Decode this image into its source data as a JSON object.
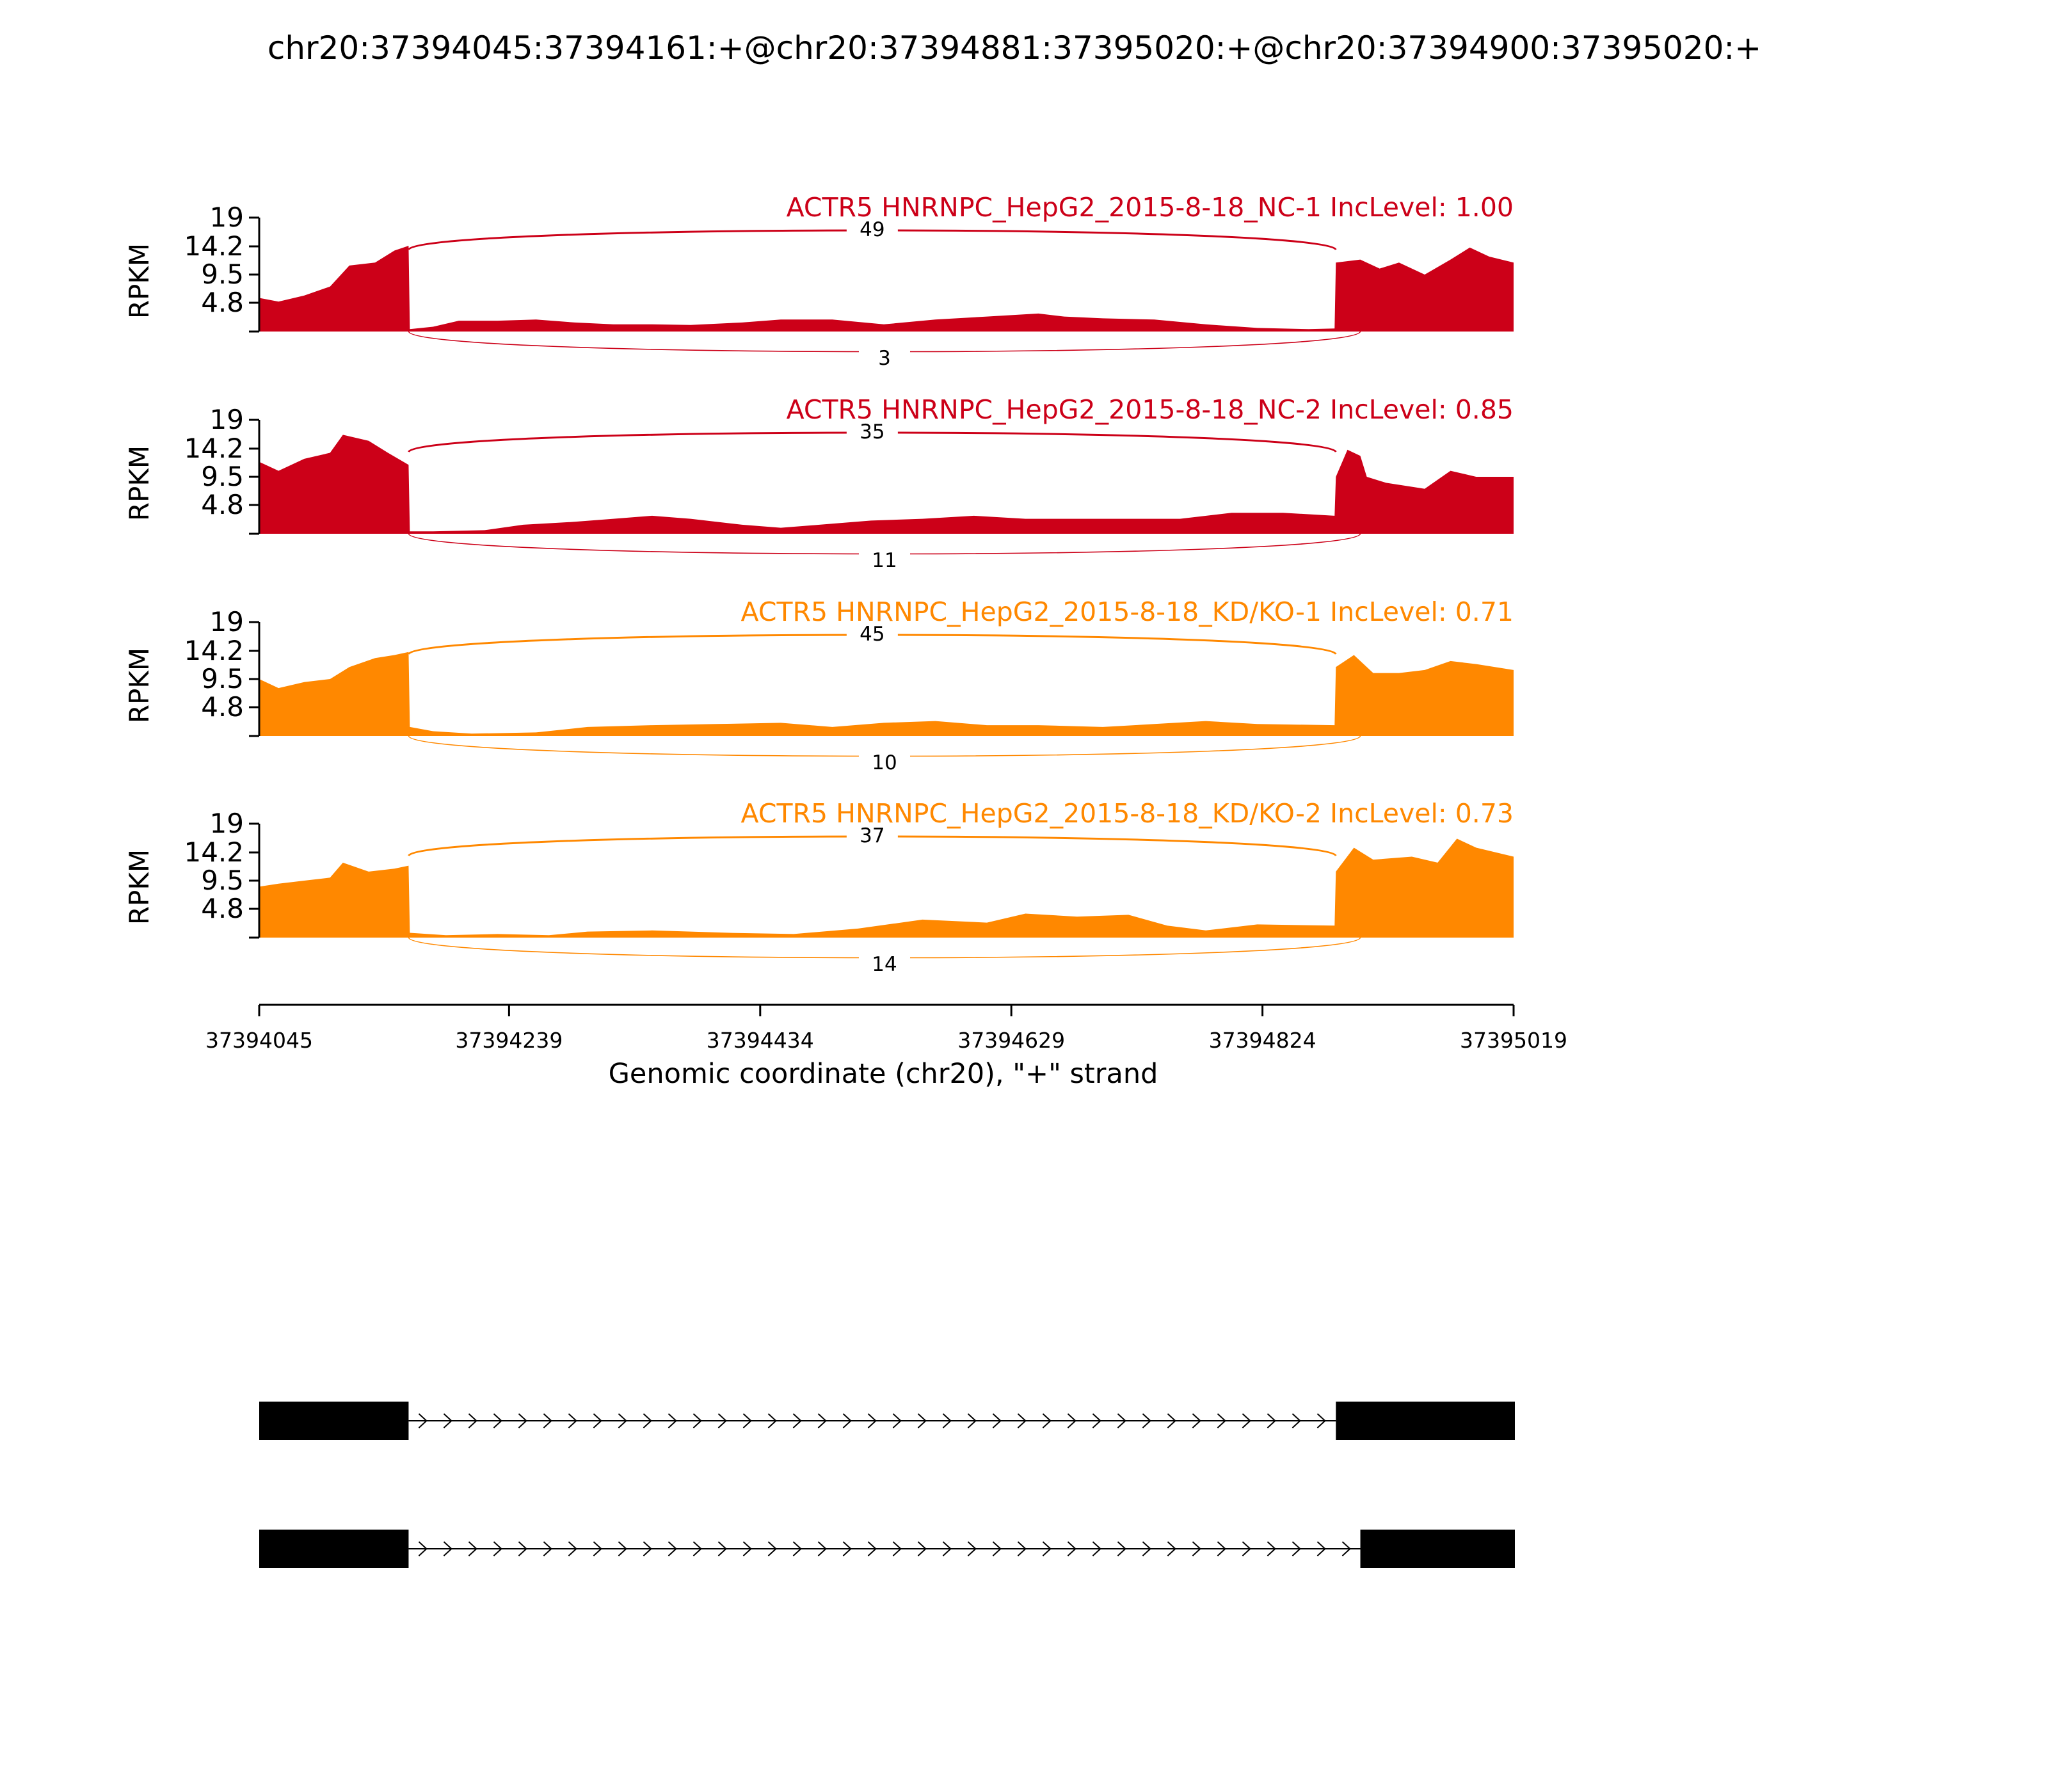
{
  "title": "chr20:37394045:37394161:+@chr20:37394881:37395020:+@chr20:37394900:37395020:+",
  "x_axis": {
    "label": "Genomic coordinate (chr20), \"+\" strand",
    "ticks": [
      "37394045",
      "37394239",
      "37394434",
      "37394629",
      "37394824",
      "37395019"
    ]
  },
  "colors": {
    "NC": "#cc0018",
    "KD": "#ff8800"
  },
  "chart_data": {
    "type": "area",
    "title": "chr20:37394045:37394161:+@chr20:37394881:37395020:+@chr20:37394900:37395020:+",
    "xlabel": "Genomic coordinate (chr20), \"+\" strand",
    "ylabel": "RPKM",
    "xlim": [
      37394045,
      37395019
    ],
    "ylim": [
      0,
      19
    ],
    "yticks": [
      "19",
      "14.2",
      "9.5",
      "4.8"
    ],
    "legend": "none",
    "exon_regions": [
      [
        37394045,
        37394161
      ],
      [
        37394881,
        37395020
      ],
      [
        37394900,
        37395020
      ]
    ],
    "tracks": [
      {
        "label": "ACTR5 HNRNPC_HepG2_2015-8-18_NC-1 IncLevel: 1.00",
        "group": "NC",
        "color": "#cc0018",
        "ylabel": "RPKM",
        "coverage": [
          [
            37394045,
            5.6
          ],
          [
            37394060,
            5.0
          ],
          [
            37394080,
            6.0
          ],
          [
            37394100,
            7.5
          ],
          [
            37394115,
            11.0
          ],
          [
            37394135,
            11.5
          ],
          [
            37394150,
            13.5
          ],
          [
            37394161,
            14.3
          ],
          [
            37394162,
            0.4
          ],
          [
            37394180,
            0.8
          ],
          [
            37394200,
            1.8
          ],
          [
            37394230,
            1.8
          ],
          [
            37394260,
            2.0
          ],
          [
            37394290,
            1.5
          ],
          [
            37394320,
            1.2
          ],
          [
            37394350,
            1.2
          ],
          [
            37394380,
            1.1
          ],
          [
            37394420,
            1.5
          ],
          [
            37394450,
            2.0
          ],
          [
            37394490,
            2.0
          ],
          [
            37394530,
            1.2
          ],
          [
            37394570,
            2.0
          ],
          [
            37394610,
            2.5
          ],
          [
            37394650,
            3.0
          ],
          [
            37394670,
            2.5
          ],
          [
            37394700,
            2.2
          ],
          [
            37394740,
            2.0
          ],
          [
            37394780,
            1.2
          ],
          [
            37394820,
            0.6
          ],
          [
            37394860,
            0.4
          ],
          [
            37394880,
            0.5
          ],
          [
            37394881,
            11.5
          ],
          [
            37394900,
            12.0
          ],
          [
            37394915,
            10.5
          ],
          [
            37394930,
            11.5
          ],
          [
            37394950,
            9.5
          ],
          [
            37394970,
            12.0
          ],
          [
            37394985,
            14.0
          ],
          [
            37395000,
            12.5
          ],
          [
            37395019,
            11.5
          ]
        ],
        "junctions": [
          {
            "count": "49",
            "from": 37394161,
            "to": 37394881,
            "side": "top"
          },
          {
            "count": "3",
            "from": 37394161,
            "to": 37394900,
            "side": "bottom"
          }
        ]
      },
      {
        "label": "ACTR5 HNRNPC_HepG2_2015-8-18_NC-2 IncLevel: 0.85",
        "group": "NC",
        "color": "#cc0018",
        "ylabel": "RPKM",
        "coverage": [
          [
            37394045,
            12.0
          ],
          [
            37394060,
            10.5
          ],
          [
            37394080,
            12.5
          ],
          [
            37394100,
            13.5
          ],
          [
            37394110,
            16.5
          ],
          [
            37394130,
            15.5
          ],
          [
            37394145,
            13.5
          ],
          [
            37394161,
            11.5
          ],
          [
            37394162,
            0.4
          ],
          [
            37394180,
            0.4
          ],
          [
            37394220,
            0.6
          ],
          [
            37394250,
            1.5
          ],
          [
            37394290,
            2.0
          ],
          [
            37394320,
            2.5
          ],
          [
            37394350,
            3.0
          ],
          [
            37394380,
            2.5
          ],
          [
            37394420,
            1.5
          ],
          [
            37394450,
            1.0
          ],
          [
            37394480,
            1.5
          ],
          [
            37394520,
            2.2
          ],
          [
            37394560,
            2.5
          ],
          [
            37394600,
            3.0
          ],
          [
            37394640,
            2.5
          ],
          [
            37394680,
            2.5
          ],
          [
            37394720,
            2.5
          ],
          [
            37394760,
            2.5
          ],
          [
            37394800,
            3.5
          ],
          [
            37394840,
            3.5
          ],
          [
            37394880,
            3.0
          ],
          [
            37394881,
            9.5
          ],
          [
            37394890,
            14.0
          ],
          [
            37394900,
            13.0
          ],
          [
            37394905,
            9.5
          ],
          [
            37394920,
            8.5
          ],
          [
            37394950,
            7.5
          ],
          [
            37394970,
            10.5
          ],
          [
            37394990,
            9.5
          ],
          [
            37395019,
            9.5
          ]
        ],
        "junctions": [
          {
            "count": "35",
            "from": 37394161,
            "to": 37394881,
            "side": "top"
          },
          {
            "count": "11",
            "from": 37394161,
            "to": 37394900,
            "side": "bottom"
          }
        ]
      },
      {
        "label": "ACTR5 HNRNPC_HepG2_2015-8-18_KD/KO-1 IncLevel: 0.71",
        "group": "KD",
        "color": "#ff8800",
        "ylabel": "RPKM",
        "coverage": [
          [
            37394045,
            9.5
          ],
          [
            37394060,
            8.0
          ],
          [
            37394080,
            9.0
          ],
          [
            37394100,
            9.5
          ],
          [
            37394115,
            11.5
          ],
          [
            37394135,
            13.0
          ],
          [
            37394150,
            13.5
          ],
          [
            37394161,
            14.0
          ],
          [
            37394162,
            1.5
          ],
          [
            37394180,
            0.8
          ],
          [
            37394210,
            0.4
          ],
          [
            37394260,
            0.6
          ],
          [
            37394300,
            1.5
          ],
          [
            37394350,
            1.8
          ],
          [
            37394400,
            2.0
          ],
          [
            37394450,
            2.2
          ],
          [
            37394490,
            1.5
          ],
          [
            37394530,
            2.2
          ],
          [
            37394570,
            2.5
          ],
          [
            37394610,
            1.8
          ],
          [
            37394650,
            1.8
          ],
          [
            37394700,
            1.5
          ],
          [
            37394740,
            2.0
          ],
          [
            37394780,
            2.5
          ],
          [
            37394820,
            2.0
          ],
          [
            37394880,
            1.8
          ],
          [
            37394881,
            11.5
          ],
          [
            37394895,
            13.5
          ],
          [
            37394910,
            10.5
          ],
          [
            37394930,
            10.5
          ],
          [
            37394950,
            11.0
          ],
          [
            37394970,
            12.5
          ],
          [
            37394990,
            12.0
          ],
          [
            37395019,
            11.0
          ]
        ],
        "junctions": [
          {
            "count": "45",
            "from": 37394161,
            "to": 37394881,
            "side": "top"
          },
          {
            "count": "10",
            "from": 37394161,
            "to": 37394900,
            "side": "bottom"
          }
        ]
      },
      {
        "label": "ACTR5 HNRNPC_HepG2_2015-8-18_KD/KO-2 IncLevel: 0.73",
        "group": "KD",
        "color": "#ff8800",
        "ylabel": "RPKM",
        "coverage": [
          [
            37394045,
            8.5
          ],
          [
            37394060,
            9.0
          ],
          [
            37394080,
            9.5
          ],
          [
            37394100,
            10.0
          ],
          [
            37394110,
            12.5
          ],
          [
            37394130,
            11.0
          ],
          [
            37394150,
            11.5
          ],
          [
            37394161,
            12.0
          ],
          [
            37394162,
            0.8
          ],
          [
            37394190,
            0.4
          ],
          [
            37394230,
            0.6
          ],
          [
            37394270,
            0.4
          ],
          [
            37394300,
            1.0
          ],
          [
            37394350,
            1.2
          ],
          [
            37394410,
            0.8
          ],
          [
            37394460,
            0.6
          ],
          [
            37394510,
            1.5
          ],
          [
            37394560,
            3.0
          ],
          [
            37394610,
            2.5
          ],
          [
            37394640,
            4.0
          ],
          [
            37394680,
            3.5
          ],
          [
            37394720,
            3.8
          ],
          [
            37394750,
            2.0
          ],
          [
            37394780,
            1.2
          ],
          [
            37394820,
            2.2
          ],
          [
            37394880,
            2.0
          ],
          [
            37394881,
            11.0
          ],
          [
            37394895,
            15.0
          ],
          [
            37394910,
            13.0
          ],
          [
            37394940,
            13.5
          ],
          [
            37394960,
            12.5
          ],
          [
            37394975,
            16.5
          ],
          [
            37394990,
            15.0
          ],
          [
            37395019,
            13.5
          ]
        ],
        "junctions": [
          {
            "count": "37",
            "from": 37394161,
            "to": 37394881,
            "side": "top"
          },
          {
            "count": "14",
            "from": 37394161,
            "to": 37394900,
            "side": "bottom"
          }
        ]
      }
    ],
    "isoforms": [
      {
        "exons": [
          [
            37394045,
            37394161
          ],
          [
            37394881,
            37395020
          ]
        ]
      },
      {
        "exons": [
          [
            37394045,
            37394161
          ],
          [
            37394900,
            37395020
          ]
        ]
      }
    ]
  }
}
